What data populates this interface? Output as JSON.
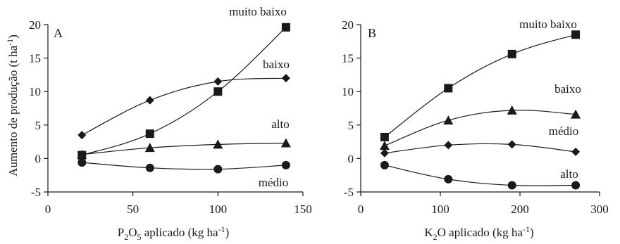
{
  "figure": {
    "ylabel": "Aumento de produção (t ha",
    "ylabel_sup": "-1",
    "ylabel_end": ")"
  },
  "chart_data": [
    {
      "panel": "A",
      "type": "line",
      "xlabel": {
        "pre": "P",
        "sub1": "2",
        "mid": "O",
        "sub2": "5",
        "post": " aplicado (kg ha",
        "sup": "-1",
        "end": ")"
      },
      "xlim": [
        0,
        150
      ],
      "xticks": [
        0,
        50,
        100,
        150
      ],
      "ylim": [
        -5,
        20
      ],
      "yticks": [
        -5,
        0,
        5,
        10,
        15,
        20
      ],
      "series": [
        {
          "name": "muito baixo",
          "marker": "square",
          "x": [
            20,
            60,
            100,
            140
          ],
          "y": [
            0.5,
            3.7,
            10.0,
            19.6
          ]
        },
        {
          "name": "baixo",
          "marker": "diamond",
          "x": [
            20,
            60,
            100,
            140
          ],
          "y": [
            3.5,
            8.7,
            11.5,
            12.0
          ]
        },
        {
          "name": "alto",
          "marker": "triangle",
          "x": [
            20,
            60,
            100,
            140
          ],
          "y": [
            0.6,
            1.6,
            2.1,
            2.3
          ]
        },
        {
          "name": "médio",
          "marker": "circle",
          "x": [
            20,
            60,
            100,
            140
          ],
          "y": [
            -0.6,
            -1.4,
            -1.6,
            -1.0
          ]
        }
      ]
    },
    {
      "panel": "B",
      "type": "line",
      "xlabel": {
        "pre": "K",
        "sub1": "2",
        "mid": "O aplicado  (kg ha",
        "sub2": "",
        "post": "",
        "sup": "-1",
        "end": ")"
      },
      "xlim": [
        0,
        300
      ],
      "xticks": [
        0,
        100,
        200,
        300
      ],
      "ylim": [
        -5,
        20
      ],
      "yticks": [
        -5,
        0,
        5,
        10,
        15,
        20
      ],
      "series": [
        {
          "name": "muito baixo",
          "marker": "square",
          "x": [
            30,
            110,
            190,
            270
          ],
          "y": [
            3.2,
            10.5,
            15.6,
            18.5
          ]
        },
        {
          "name": "baixo",
          "marker": "triangle",
          "x": [
            30,
            110,
            190,
            270
          ],
          "y": [
            1.9,
            5.7,
            7.2,
            6.6
          ]
        },
        {
          "name": "médio",
          "marker": "diamond",
          "x": [
            30,
            110,
            190,
            270
          ],
          "y": [
            0.8,
            2.0,
            2.1,
            1.0
          ]
        },
        {
          "name": "alto",
          "marker": "circle",
          "x": [
            30,
            110,
            190,
            270
          ],
          "y": [
            -1.0,
            -3.1,
            -4.0,
            -4.0
          ]
        }
      ]
    }
  ]
}
